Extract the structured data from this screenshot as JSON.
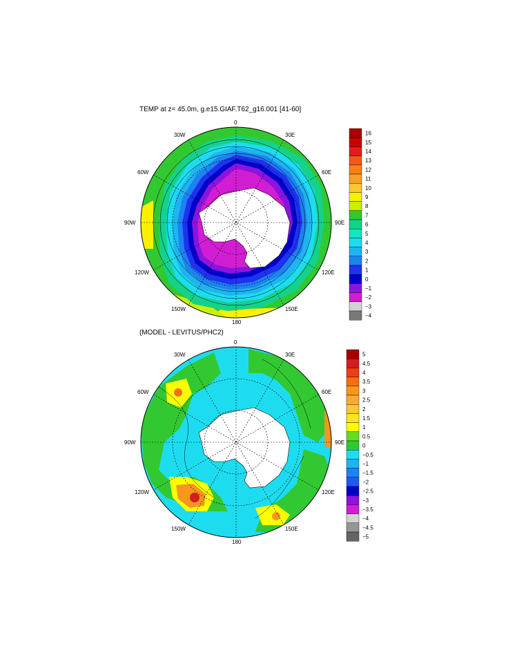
{
  "top_map": {
    "title": "TEMP at z=  45.0m, g.e15.GIAF.T62_g16.001 [41-60]",
    "lon_labels": [
      "0",
      "30E",
      "60E",
      "90E",
      "120E",
      "150E",
      "180",
      "150W",
      "120W",
      "90W",
      "60W",
      "30W"
    ],
    "colorbar": {
      "labels": [
        "16",
        "15",
        "14",
        "13",
        "12",
        "11",
        "10",
        "9",
        "8",
        "7",
        "6",
        "5",
        "4",
        "3",
        "2",
        "1",
        "0",
        "−1",
        "−2",
        "−3",
        "−4"
      ],
      "colors": [
        "#a80000",
        "#c80000",
        "#e01e1e",
        "#f05a14",
        "#f58214",
        "#f5a028",
        "#fac832",
        "#faf000",
        "#c8f000",
        "#32c832",
        "#14d28c",
        "#14e6be",
        "#1edcf0",
        "#1eb4f0",
        "#1e82f0",
        "#1e32f0",
        "#0000c8",
        "#8c14dc",
        "#d21ed2",
        "#d2d2d2",
        "#787878"
      ]
    },
    "fields": {
      "ice_shelf_colors": [
        "#d21ed2",
        "#8c14dc",
        "#0000c8",
        "#1e32f0",
        "#1e82f0",
        "#1eb4f0",
        "#1edcf0",
        "#14e6be",
        "#14d28c",
        "#32c832",
        "#c8f000",
        "#faf000"
      ]
    }
  },
  "bottom_map": {
    "title": "(MODEL - LEVITUS/PHC2)",
    "lon_labels": [
      "0",
      "30E",
      "60E",
      "90E",
      "120E",
      "150E",
      "180",
      "150W",
      "120W",
      "90W",
      "60W",
      "30W"
    ],
    "colorbar": {
      "labels": [
        "5",
        "4.5",
        "4",
        "3.5",
        "3",
        "2.5",
        "2",
        "1.5",
        "1",
        "0.5",
        "0",
        "−0.5",
        "−1",
        "−1.5",
        "−2",
        "−2.5",
        "−3",
        "−3.5",
        "−4",
        "−4.5",
        "−5"
      ],
      "colors": [
        "#a80000",
        "#d21e1e",
        "#f03c14",
        "#f56e14",
        "#f5961e",
        "#faaa32",
        "#fac832",
        "#fae61e",
        "#faff00",
        "#64dc28",
        "#32c832",
        "#1edcf0",
        "#1eb4f0",
        "#1e82f0",
        "#1e5af0",
        "#0000c8",
        "#8c14dc",
        "#d21ed2",
        "#d2d2d2",
        "#969696",
        "#646464"
      ]
    }
  }
}
